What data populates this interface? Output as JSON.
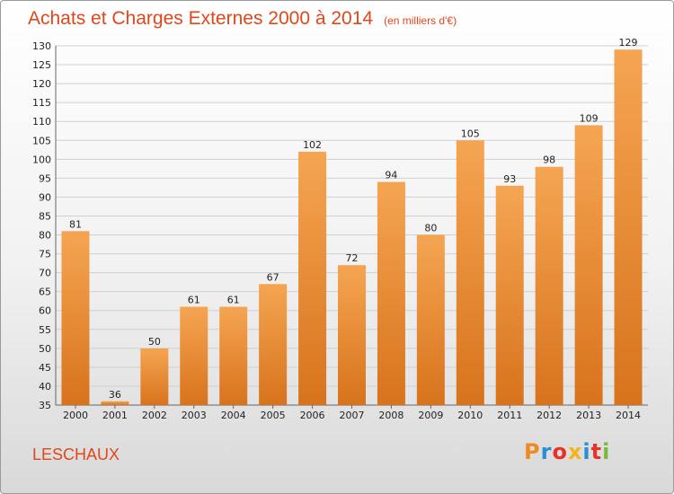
{
  "header": {
    "title": "Achats et Charges Externes 2000 à 2014",
    "unit": "(en milliers d'€)"
  },
  "footer": {
    "commune": "LESCHAUX",
    "brand": "Proxiti"
  },
  "colors": {
    "accent": "#e0471a",
    "bar_top": "#f5a552",
    "bar_bottom": "#d8731c",
    "brand_letters": [
      "#f08a1f",
      "#2a8ed6",
      "#e8312a",
      "#f4b51a",
      "#2a8ed6",
      "#e8312a",
      "#7cb83a"
    ]
  },
  "chart_data": {
    "type": "bar",
    "title": "Achats et Charges Externes 2000 à 2014",
    "subtitle": "(en milliers d'€)",
    "categories": [
      "2000",
      "2001",
      "2002",
      "2003",
      "2004",
      "2005",
      "2006",
      "2007",
      "2008",
      "2009",
      "2010",
      "2011",
      "2012",
      "2013",
      "2014"
    ],
    "values": [
      81,
      36,
      50,
      61,
      61,
      67,
      102,
      72,
      94,
      80,
      105,
      93,
      98,
      109,
      129
    ],
    "xlabel": "",
    "ylabel": "",
    "ylim": [
      35,
      130
    ],
    "yticks": [
      35,
      40,
      45,
      50,
      55,
      60,
      65,
      70,
      75,
      80,
      85,
      90,
      95,
      100,
      105,
      110,
      115,
      120,
      125,
      130
    ],
    "grid": true,
    "legend": "none"
  }
}
